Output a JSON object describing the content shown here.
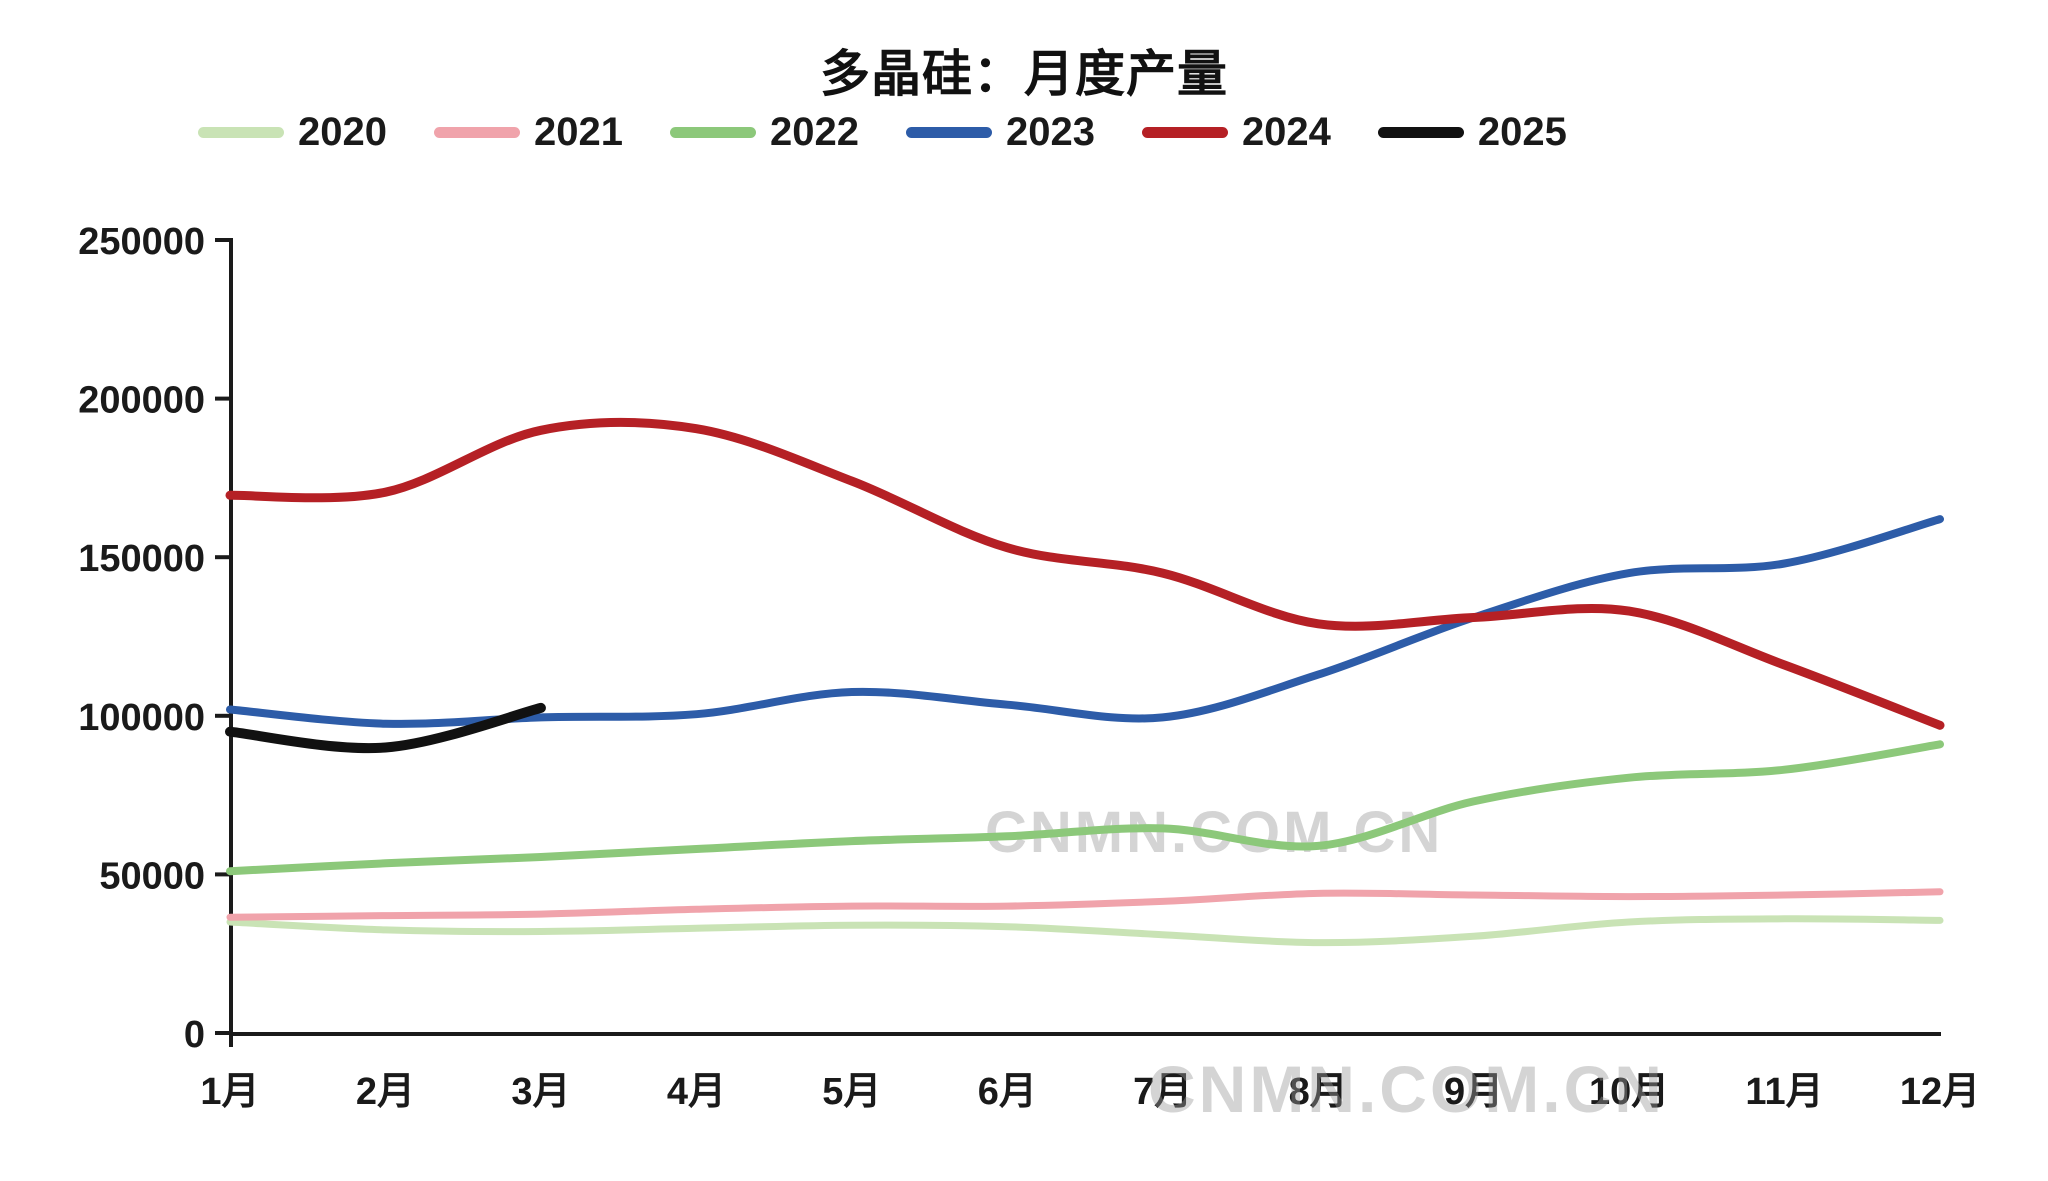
{
  "chart_data": {
    "type": "line",
    "title": "多晶硅：月度产量",
    "watermark": "CNMN.COM.CN",
    "legend_position": "top",
    "grid": false,
    "categories": [
      "1月",
      "2月",
      "3月",
      "4月",
      "5月",
      "6月",
      "7月",
      "8月",
      "9月",
      "10月",
      "11月",
      "12月"
    ],
    "ylim": [
      0,
      250000
    ],
    "yticks": [
      0,
      50000,
      100000,
      150000,
      200000,
      250000
    ],
    "ytick_labels": [
      "0",
      "50000",
      "100000",
      "150000",
      "200000",
      "250000"
    ],
    "series": [
      {
        "name": "2020",
        "color": "#c9e3b5",
        "line_width": 7,
        "values": [
          35000,
          32500,
          32000,
          33000,
          34000,
          33500,
          31000,
          28500,
          30500,
          35000,
          36000,
          35500
        ]
      },
      {
        "name": "2021",
        "color": "#f0a3ab",
        "line_width": 7,
        "values": [
          36500,
          37000,
          37500,
          39000,
          40000,
          40000,
          41500,
          44000,
          43500,
          43000,
          43500,
          44500
        ]
      },
      {
        "name": "2022",
        "color": "#8cc87a",
        "line_width": 8,
        "values": [
          51000,
          53500,
          55500,
          58000,
          60500,
          62000,
          64500,
          59000,
          73000,
          80500,
          83000,
          91000
        ]
      },
      {
        "name": "2023",
        "color": "#2d5ca8",
        "line_width": 8,
        "values": [
          102000,
          97500,
          99500,
          100500,
          107500,
          103500,
          99500,
          113000,
          131000,
          145000,
          148000,
          162000
        ]
      },
      {
        "name": "2024",
        "color": "#b52025",
        "line_width": 9,
        "values": [
          169500,
          170500,
          190000,
          190500,
          174000,
          153000,
          145000,
          129000,
          131000,
          133000,
          116000,
          97000
        ]
      },
      {
        "name": "2025",
        "color": "#111111",
        "line_width": 10,
        "values": [
          95000,
          90000,
          102500
        ]
      }
    ]
  }
}
